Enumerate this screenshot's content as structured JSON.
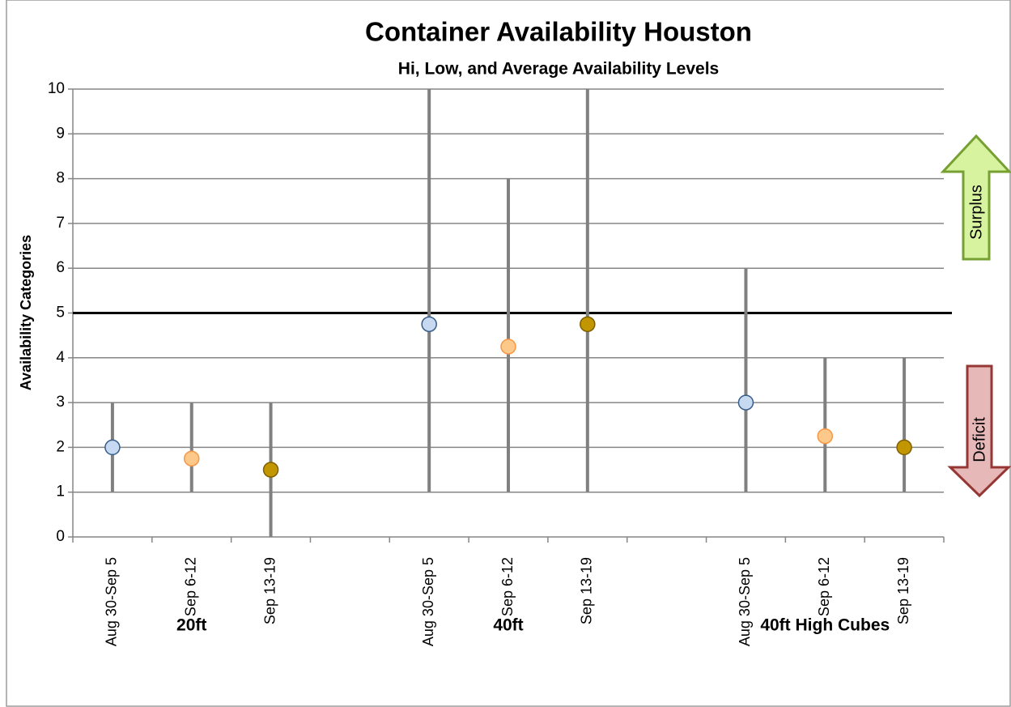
{
  "chart_data": {
    "type": "hilo",
    "title": "Container Availability Houston",
    "subtitle": "Hi, Low, and Average Availability Levels",
    "y_label": "Availability Categories",
    "categories": [
      "Aug 30-Sep 5",
      "Sep 6-12",
      "Sep 13-19",
      null,
      "Aug 30-Sep 5",
      "Sep 6-12",
      "Sep 13-19",
      null,
      "Aug 30-Sep 5",
      "Sep 6-12",
      "Sep 13-19"
    ],
    "groups": [
      "20ft",
      "40ft",
      "40ft High Cubes"
    ],
    "high": [
      3,
      3,
      3,
      null,
      10,
      8,
      10,
      null,
      6,
      4,
      4
    ],
    "low": [
      1,
      1,
      0,
      null,
      1,
      1,
      1,
      null,
      1,
      1,
      1
    ],
    "average": [
      2,
      1.75,
      1.5,
      null,
      4.75,
      4.25,
      4.75,
      null,
      3,
      2.25,
      2
    ],
    "colors": [
      "#c6d9f1",
      "#fcc98a",
      "#c29600",
      null,
      "#c6d9f1",
      "#fcc98a",
      "#c29600",
      null,
      "#c6d9f1",
      "#fcc98a",
      "#c29600"
    ],
    "strokes": [
      "#385d8a",
      "#f79646",
      "#7f6000",
      null,
      "#385d8a",
      "#f79646",
      "#7f6000",
      null,
      "#385d8a",
      "#f79646",
      "#7f6000"
    ],
    "range_color": "#808080",
    "reference_line": 5,
    "annotations": [
      "Surplus",
      "Deficit"
    ],
    "ylim": [
      0,
      10
    ],
    "yticks": [
      0,
      1,
      2,
      3,
      4,
      5,
      6,
      7,
      8,
      9,
      10
    ],
    "grid": true
  }
}
